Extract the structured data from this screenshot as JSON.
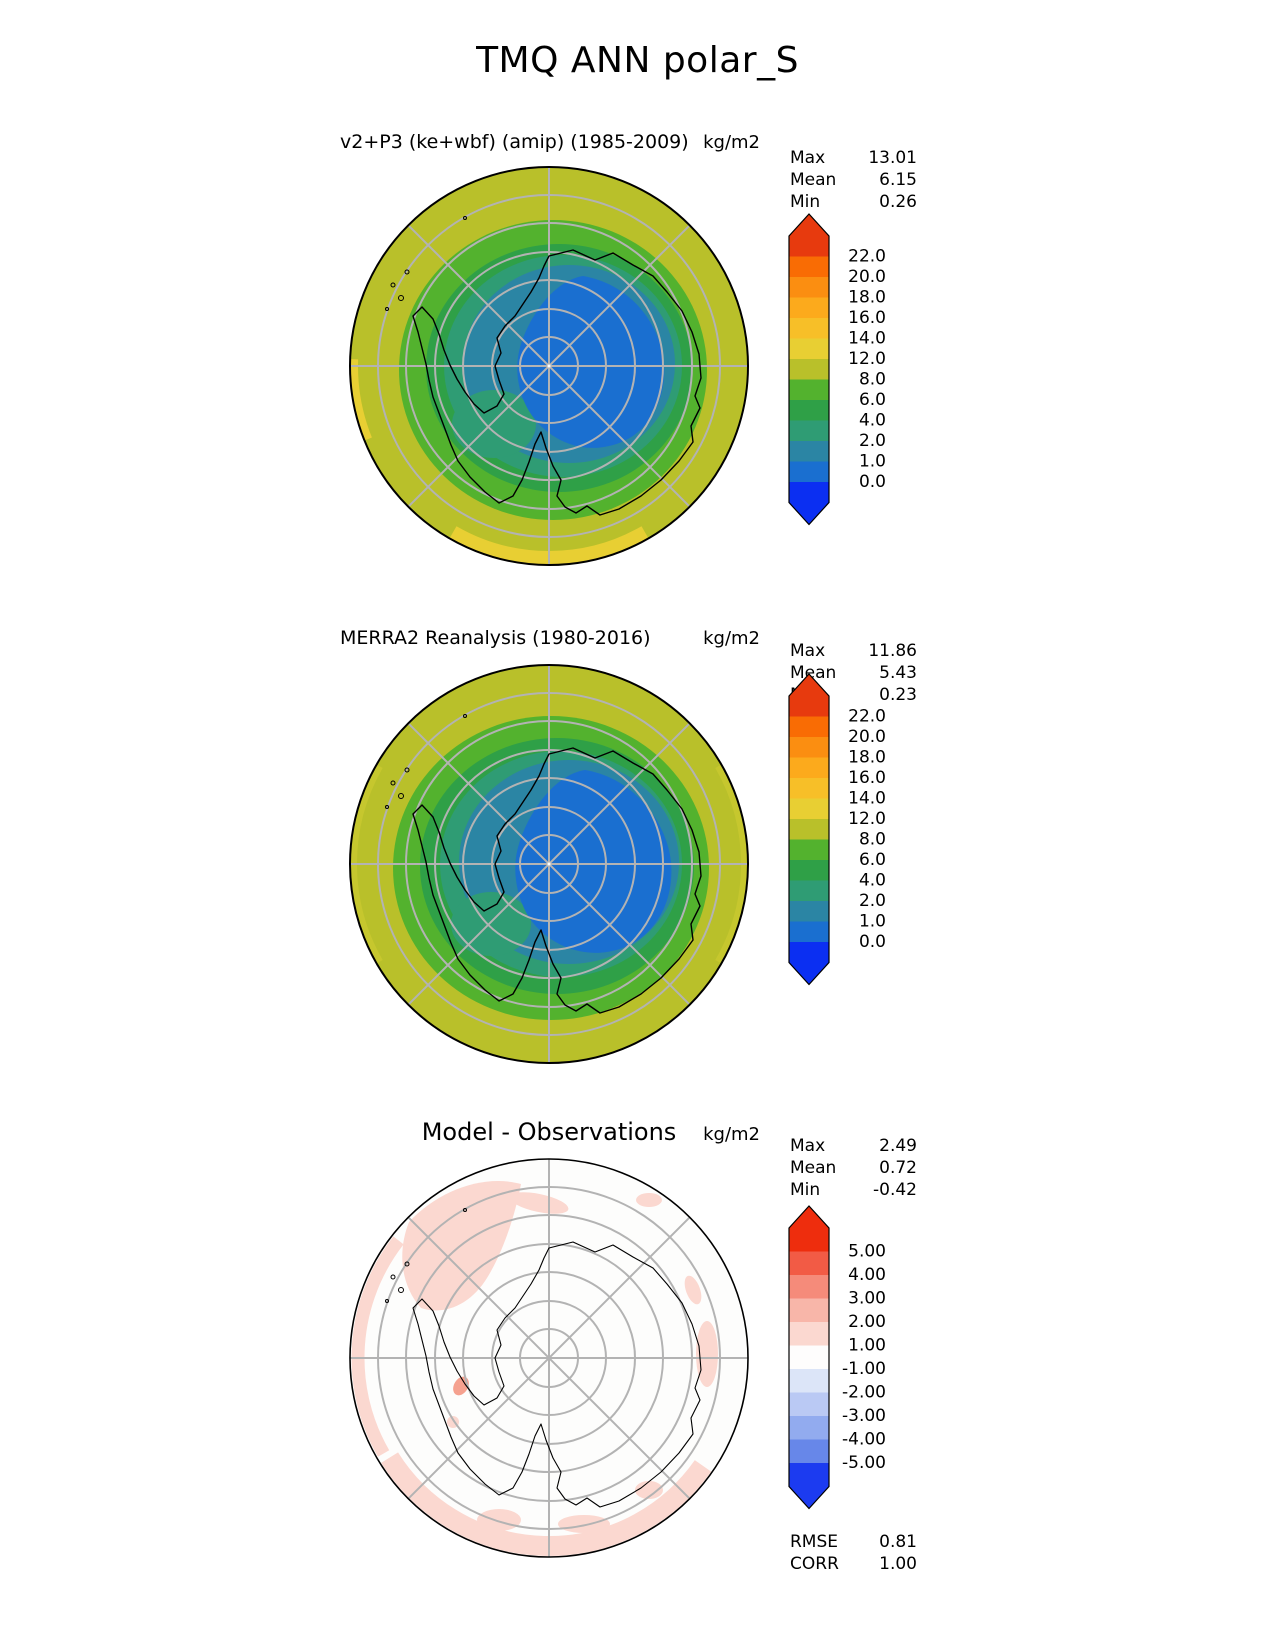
{
  "title": "TMQ ANN polar_S",
  "panels": [
    {
      "subtitle": "v2+P3 (ke+wbf) (amip) (1985-2009)",
      "units": "kg/m2",
      "stats": {
        "rows": [
          {
            "label": "Max",
            "value": "13.01"
          },
          {
            "label": "Mean",
            "value": "6.15"
          },
          {
            "label": "Min",
            "value": "0.26"
          }
        ]
      },
      "colorbar": {
        "ticks": [
          "22.0",
          "20.0",
          "18.0",
          "16.0",
          "14.0",
          "12.0",
          "8.0",
          "6.0",
          "4.0",
          "2.0",
          "1.0",
          "0.0"
        ],
        "colors": [
          "#e73a0e",
          "#f96c04",
          "#fb8e11",
          "#fcaa1c",
          "#f7bf28",
          "#e8cf33",
          "#b9c02a",
          "#53b22e",
          "#2fa047",
          "#2f9c74",
          "#2b85a4",
          "#1a6fd0",
          "#0b2ff2"
        ]
      }
    },
    {
      "subtitle": "MERRA2 Reanalysis (1980-2016)",
      "units": "kg/m2",
      "stats": {
        "rows": [
          {
            "label": "Max",
            "value": "11.86"
          },
          {
            "label": "Mean",
            "value": "5.43"
          },
          {
            "label": "Min",
            "value": "0.23"
          }
        ]
      },
      "colorbar": {
        "ticks": [
          "22.0",
          "20.0",
          "18.0",
          "16.0",
          "14.0",
          "12.0",
          "8.0",
          "6.0",
          "4.0",
          "2.0",
          "1.0",
          "0.0"
        ],
        "colors": [
          "#e73a0e",
          "#f96c04",
          "#fb8e11",
          "#fcaa1c",
          "#f7bf28",
          "#e8cf33",
          "#b9c02a",
          "#53b22e",
          "#2fa047",
          "#2f9c74",
          "#2b85a4",
          "#1a6fd0",
          "#0b2ff2"
        ]
      }
    },
    {
      "subtitle": "Model - Observations",
      "units": "kg/m2",
      "stats": {
        "rows": [
          {
            "label": "Max",
            "value": "2.49"
          },
          {
            "label": "Mean",
            "value": "0.72"
          },
          {
            "label": "Min",
            "value": "-0.42"
          }
        ]
      },
      "colorbar": {
        "ticks": [
          "5.00",
          "4.00",
          "3.00",
          "2.00",
          "1.00",
          "-1.00",
          "-2.00",
          "-3.00",
          "-4.00",
          "-5.00"
        ],
        "colors": [
          "#ee2d0d",
          "#f25b45",
          "#f58b7a",
          "#f8b6a9",
          "#fbd8d0",
          "#fefdfd",
          "#dce5f8",
          "#bac9f4",
          "#92abef",
          "#6787e9",
          "#1c3bf0"
        ]
      },
      "footer": {
        "rows": [
          {
            "label": "RMSE",
            "value": "0.81"
          },
          {
            "label": "CORR",
            "value": "1.00"
          }
        ]
      }
    }
  ],
  "palette": {
    "map_bg": "#b9c02a",
    "yellow_band": "#e8cf33",
    "light_olive": "#c6c72e",
    "green_band": "#53b22e",
    "dark_green_band": "#2fa047",
    "sea_green_band": "#2f9c74",
    "teal_band": "#2b85a4",
    "blue_band": "#1a6fd0",
    "diff_bg": "#fdfdfc",
    "diff_pink": "#fbd8d0",
    "diff_pink2": "#f5a18f",
    "graticule": "#b3b3b3",
    "coast": "#000000"
  },
  "chart_data": [
    {
      "type": "heatmap",
      "title": "v2+P3 (ke+wbf) (amip) (1985-2009)",
      "variable": "TMQ",
      "season": "ANN",
      "region": "polar_S",
      "projection": "south polar stereographic",
      "units": "kg/m2",
      "contour_levels": [
        0.0,
        1.0,
        2.0,
        4.0,
        6.0,
        8.0,
        12.0,
        14.0,
        16.0,
        18.0,
        20.0,
        22.0
      ],
      "stats": {
        "max": 13.01,
        "mean": 6.15,
        "min": 0.26
      },
      "legend_position": "right",
      "description": "Total precipitable water: ~0-2 kg/m2 (blue) over East Antarctic interior, 2-8 (teal/green) near coast, 8-12 (olive) over Southern Ocean, patches 12-14 (yellow) near the 55S rim."
    },
    {
      "type": "heatmap",
      "title": "MERRA2 Reanalysis (1980-2016)",
      "variable": "TMQ",
      "season": "ANN",
      "region": "polar_S",
      "projection": "south polar stereographic",
      "units": "kg/m2",
      "contour_levels": [
        0.0,
        1.0,
        2.0,
        4.0,
        6.0,
        8.0,
        12.0,
        14.0,
        16.0,
        18.0,
        20.0,
        22.0
      ],
      "stats": {
        "max": 11.86,
        "mean": 5.43,
        "min": 0.23
      },
      "legend_position": "right",
      "description": "Same field from MERRA2 reanalysis; slightly broader blue (0-2 kg/m2) region over the Antarctic plateau."
    },
    {
      "type": "heatmap",
      "title": "Model - Observations",
      "variable": "TMQ difference",
      "season": "ANN",
      "region": "polar_S",
      "projection": "south polar stereographic",
      "units": "kg/m2",
      "contour_levels": [
        -5.0,
        -4.0,
        -3.0,
        -2.0,
        -1.0,
        1.0,
        2.0,
        3.0,
        4.0,
        5.0
      ],
      "stats": {
        "max": 2.49,
        "mean": 0.72,
        "min": -0.42,
        "rmse": 0.81,
        "corr": 1.0
      },
      "legend_position": "right",
      "description": "Mostly |diff| < 1 (white); +1 to +2 kg/m2 positive bias (light pink) over the Southern Ocean near the rim, strongest northwest and south; small +2 to +3 spot near the Antarctic Peninsula."
    }
  ]
}
